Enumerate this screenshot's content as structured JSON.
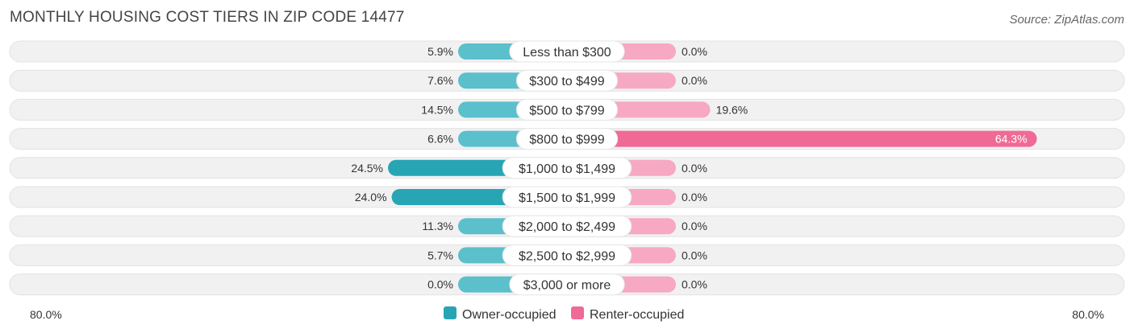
{
  "title": "MONTHLY HOUSING COST TIERS IN ZIP CODE 14477",
  "source": "Source: ZipAtlas.com",
  "colors": {
    "owner": "#5bbfcc",
    "owner_strong": "#27a5b5",
    "renter": "#f7a8c3",
    "renter_strong": "#f06a96",
    "row_bg": "#eeeeee"
  },
  "chart_data": {
    "type": "bar",
    "orientation": "horizontal-diverging",
    "categories": [
      "Less than $300",
      "$300 to $499",
      "$500 to $799",
      "$800 to $999",
      "$1,000 to $1,499",
      "$1,500 to $1,999",
      "$2,000 to $2,499",
      "$2,500 to $2,999",
      "$3,000 or more"
    ],
    "series": [
      {
        "name": "Owner-occupied",
        "values": [
          5.9,
          7.6,
          14.5,
          6.6,
          24.5,
          24.0,
          11.3,
          5.7,
          0.0
        ],
        "labels": [
          "5.9%",
          "7.6%",
          "14.5%",
          "6.6%",
          "24.5%",
          "24.0%",
          "11.3%",
          "5.7%",
          "0.0%"
        ]
      },
      {
        "name": "Renter-occupied",
        "values": [
          0.0,
          0.0,
          19.6,
          64.3,
          0.0,
          0.0,
          0.0,
          0.0,
          0.0
        ],
        "labels": [
          "0.0%",
          "0.0%",
          "19.6%",
          "64.3%",
          "0.0%",
          "0.0%",
          "0.0%",
          "0.0%",
          "0.0%"
        ]
      }
    ],
    "xlim": [
      -80,
      80
    ],
    "axis_labels": {
      "left": "80.0%",
      "right": "80.0%"
    },
    "legend_position": "bottom-center"
  }
}
